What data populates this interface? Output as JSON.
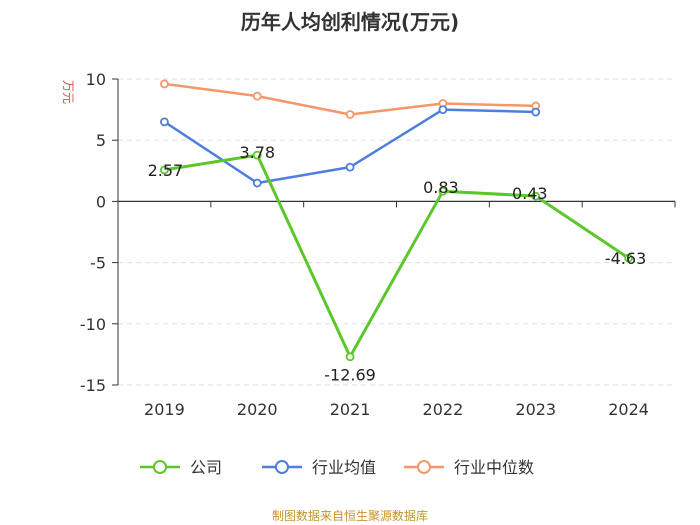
{
  "chart_data": {
    "type": "line",
    "title": "历年人均创利情况(万元)",
    "ylabel": "万元",
    "xlabel": "",
    "categories": [
      "2019",
      "2020",
      "2021",
      "2022",
      "2023",
      "2024"
    ],
    "ylim": [
      -15,
      10
    ],
    "yticks": [
      10,
      5,
      0,
      -5,
      -10,
      -15
    ],
    "grid": true,
    "legend_position": "bottom",
    "series": [
      {
        "name": "公司",
        "color": "#5cc72a",
        "values": [
          2.57,
          3.78,
          -12.69,
          0.83,
          0.43,
          -4.63
        ],
        "labels": [
          "2.57",
          "3.78",
          "-12.69",
          "0.83",
          "0.43",
          "-4.63"
        ]
      },
      {
        "name": "行业均值",
        "color": "#4e7fdc",
        "values": [
          6.5,
          1.5,
          2.8,
          7.5,
          7.3,
          null
        ]
      },
      {
        "name": "行业中位数",
        "color": "#f5976a",
        "values": [
          9.6,
          8.6,
          7.1,
          8.0,
          7.8,
          null
        ]
      }
    ]
  },
  "footer": {
    "source": "制图数据来自恒生聚源数据库"
  }
}
